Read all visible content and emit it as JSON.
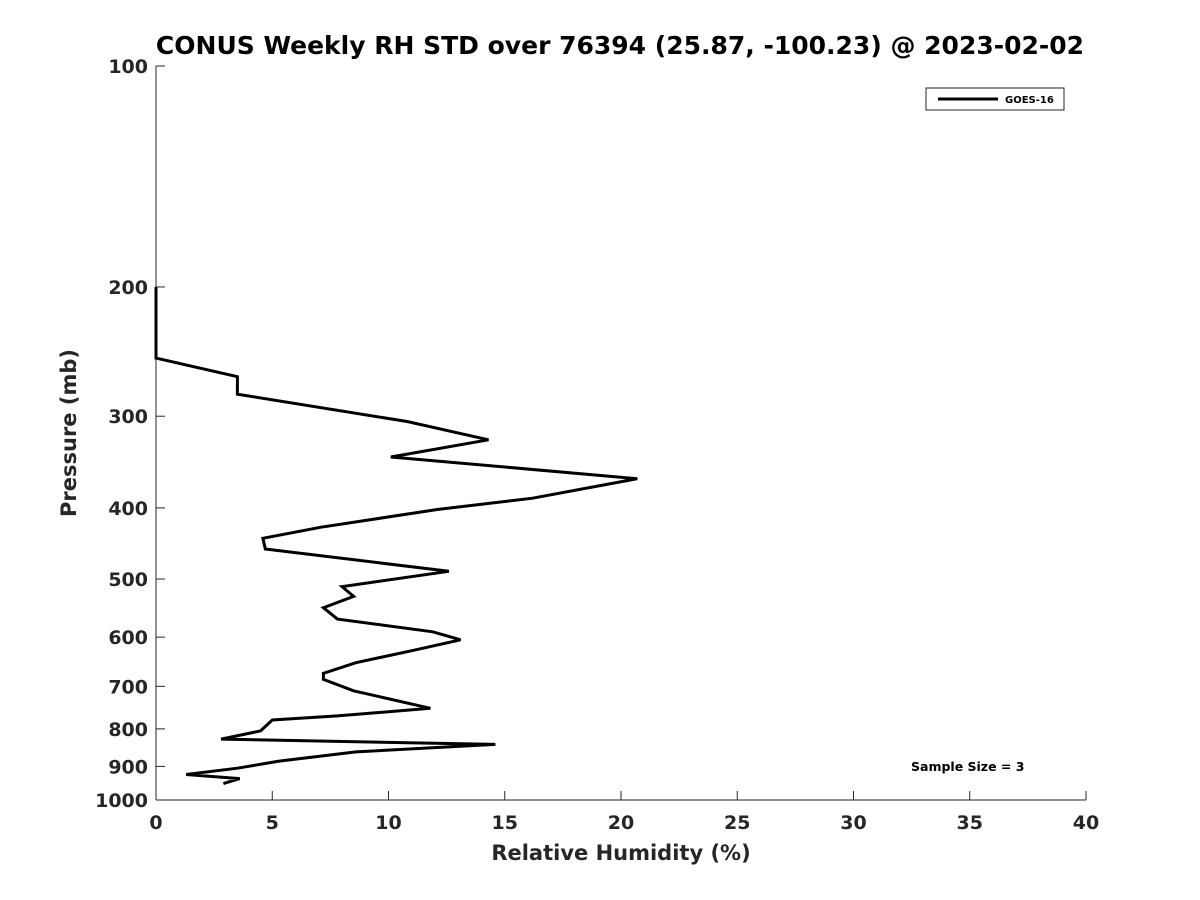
{
  "chart_data": {
    "type": "line",
    "title": "CONUS Weekly RH STD over 76394 (25.87, -100.23) @ 2023-02-02",
    "xlabel": "Relative Humidity (%)",
    "ylabel": "Pressure (mb)",
    "xlim": [
      0,
      40
    ],
    "ylim": [
      100,
      1000
    ],
    "yscale": "log",
    "y_reversed": true,
    "grid": false,
    "legend_position": "top-right",
    "x_ticks": [
      "0",
      "5",
      "10",
      "15",
      "20",
      "25",
      "30",
      "35",
      "40"
    ],
    "y_ticks": [
      "100",
      "200",
      "300",
      "400",
      "500",
      "600",
      "700",
      "800",
      "900",
      "1000"
    ],
    "annotation": "Sample Size = 3",
    "series": [
      {
        "name": "GOES-16",
        "color": "#000000",
        "points": [
          [
            0.0,
            200
          ],
          [
            0.0,
            250
          ],
          [
            3.5,
            265
          ],
          [
            3.5,
            280
          ],
          [
            10.8,
            305
          ],
          [
            14.3,
            323
          ],
          [
            10.1,
            341
          ],
          [
            20.7,
            365
          ],
          [
            16.2,
            388
          ],
          [
            12.1,
            402
          ],
          [
            7.1,
            425
          ],
          [
            4.6,
            440
          ],
          [
            4.7,
            455
          ],
          [
            12.6,
            488
          ],
          [
            8.0,
            512
          ],
          [
            8.5,
            528
          ],
          [
            7.2,
            547
          ],
          [
            7.8,
            567
          ],
          [
            11.9,
            590
          ],
          [
            13.1,
            605
          ],
          [
            11.1,
            625
          ],
          [
            8.6,
            650
          ],
          [
            7.2,
            672
          ],
          [
            7.2,
            685
          ],
          [
            8.5,
            710
          ],
          [
            11.8,
            750
          ],
          [
            7.8,
            768
          ],
          [
            5.0,
            778
          ],
          [
            4.5,
            805
          ],
          [
            2.8,
            826
          ],
          [
            14.6,
            840
          ],
          [
            8.6,
            860
          ],
          [
            5.3,
            885
          ],
          [
            3.5,
            905
          ],
          [
            1.3,
            923
          ],
          [
            3.6,
            935
          ],
          [
            2.9,
            950
          ]
        ]
      }
    ]
  }
}
